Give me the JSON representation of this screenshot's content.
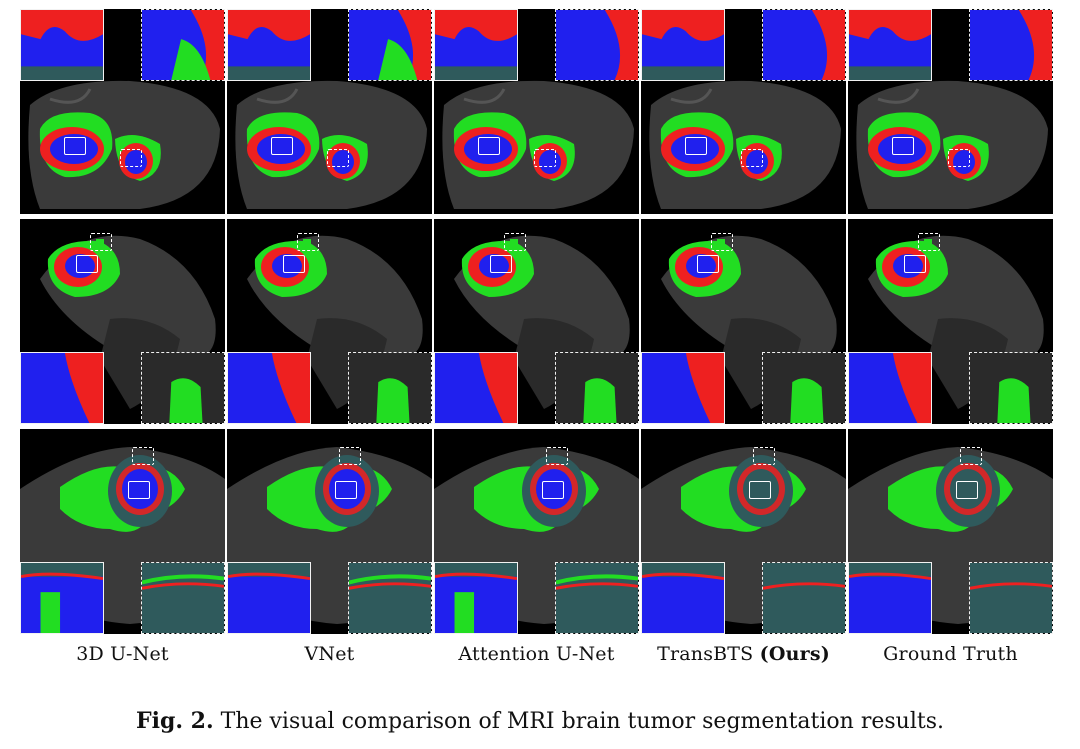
{
  "figure": {
    "columns": [
      {
        "id": "unet3d",
        "label": "3D U-Net",
        "label_suffix": ""
      },
      {
        "id": "vnet",
        "label": "VNet",
        "label_suffix": ""
      },
      {
        "id": "attention",
        "label": "Attention U-Net",
        "label_suffix": ""
      },
      {
        "id": "transbts",
        "label": "TransBTS",
        "label_suffix": "(Ours)"
      },
      {
        "id": "gt",
        "label": "Ground Truth",
        "label_suffix": ""
      }
    ],
    "rows": [
      {
        "id": "axial-case",
        "inset_position": "top"
      },
      {
        "id": "sagittal-case",
        "inset_position": "bottom"
      },
      {
        "id": "coronal-case",
        "inset_position": "bottom"
      }
    ],
    "colors": {
      "enhancing_tumor": "#ee2020",
      "necrotic_core": "#2020ee",
      "edema": "#22dd22",
      "background": "#000000",
      "brain_tissue": "#3a3a3a",
      "cyst_tissue": "#2f5a5c"
    }
  },
  "caption": {
    "prefix": "Fig. 2.",
    "text": " The visual comparison of MRI brain tumor segmentation results."
  }
}
